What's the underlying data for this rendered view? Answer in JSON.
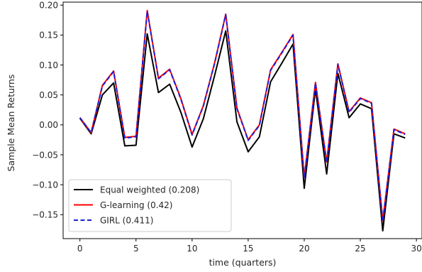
{
  "chart_data": {
    "type": "line",
    "title": "",
    "xlabel": "time (quarters)",
    "ylabel": "Sample Mean Returns",
    "xlim": [
      -1.5,
      30.5
    ],
    "ylim": [
      -0.19,
      0.205
    ],
    "xticks": [
      0,
      5,
      10,
      15,
      20,
      25,
      30
    ],
    "xtick_labels": [
      "0",
      "5",
      "10",
      "15",
      "20",
      "25",
      "30"
    ],
    "yticks": [
      -0.15,
      -0.1,
      -0.05,
      0.0,
      0.05,
      0.1,
      0.15,
      0.2
    ],
    "ytick_labels": [
      "−0.15",
      "−0.10",
      "−0.05",
      "0.00",
      "0.05",
      "0.10",
      "0.15",
      "0.20"
    ],
    "grid": false,
    "legend_position": "lower-left",
    "x": [
      0,
      1,
      2,
      3,
      4,
      5,
      6,
      7,
      8,
      9,
      10,
      11,
      12,
      13,
      14,
      15,
      16,
      17,
      18,
      19,
      20,
      21,
      22,
      23,
      24,
      25,
      26,
      27,
      28,
      29
    ],
    "series": [
      {
        "name": "Equal weighted (0.208)",
        "color": "#000000",
        "linestyle": "solid",
        "values": [
          0.011,
          -0.015,
          0.05,
          0.07,
          -0.035,
          -0.034,
          0.152,
          0.054,
          0.068,
          0.021,
          -0.037,
          0.01,
          0.082,
          0.157,
          0.005,
          -0.045,
          -0.02,
          0.072,
          0.103,
          0.135,
          -0.106,
          0.06,
          -0.082,
          0.086,
          0.012,
          0.035,
          0.027,
          -0.177,
          -0.015,
          -0.022
        ]
      },
      {
        "name": "G-learning (0.42)",
        "color": "#ff0000",
        "linestyle": "solid",
        "values": [
          0.012,
          -0.013,
          0.066,
          0.09,
          -0.021,
          -0.019,
          0.191,
          0.078,
          0.093,
          0.044,
          -0.016,
          0.032,
          0.103,
          0.185,
          0.028,
          -0.025,
          0.0,
          0.092,
          0.121,
          0.151,
          -0.088,
          0.071,
          -0.062,
          0.102,
          0.022,
          0.045,
          0.037,
          -0.16,
          -0.007,
          -0.015
        ]
      },
      {
        "name": "GIRL (0.411)",
        "color": "#1f1fd6",
        "linestyle": "dashed",
        "values": [
          0.012,
          -0.013,
          0.065,
          0.089,
          -0.022,
          -0.02,
          0.19,
          0.077,
          0.092,
          0.043,
          -0.017,
          0.031,
          0.102,
          0.184,
          0.027,
          -0.026,
          -0.001,
          0.091,
          0.12,
          0.15,
          -0.089,
          0.07,
          -0.063,
          0.101,
          0.021,
          0.044,
          0.036,
          -0.161,
          -0.008,
          -0.016
        ]
      }
    ]
  }
}
